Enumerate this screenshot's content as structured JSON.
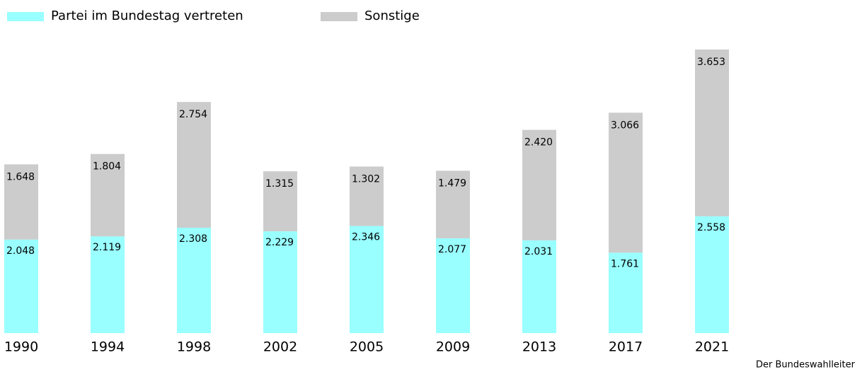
{
  "chart_data": {
    "type": "stacked_bar",
    "categories": [
      "1990",
      "1994",
      "1998",
      "2002",
      "2005",
      "2009",
      "2013",
      "2017",
      "2021"
    ],
    "series": [
      {
        "name": "Partei im Bundestag vertreten",
        "color": "#99ffff",
        "values": [
          2048,
          2119,
          2308,
          2229,
          2346,
          2077,
          2031,
          1761,
          2558
        ],
        "value_labels": [
          "2.048",
          "2.119",
          "2.308",
          "2.229",
          "2.346",
          "2.077",
          "2.031",
          "1.761",
          "2.558"
        ]
      },
      {
        "name": "Sonstige",
        "color": "#cccccc",
        "values": [
          1648,
          1804,
          2754,
          1315,
          1302,
          1479,
          2420,
          3066,
          3653
        ],
        "value_labels": [
          "1.648",
          "1.804",
          "2.754",
          "1.315",
          "1.302",
          "1.479",
          "2.420",
          "3.066",
          "3.653"
        ]
      }
    ],
    "source": "Der Bundeswahlleiter"
  }
}
